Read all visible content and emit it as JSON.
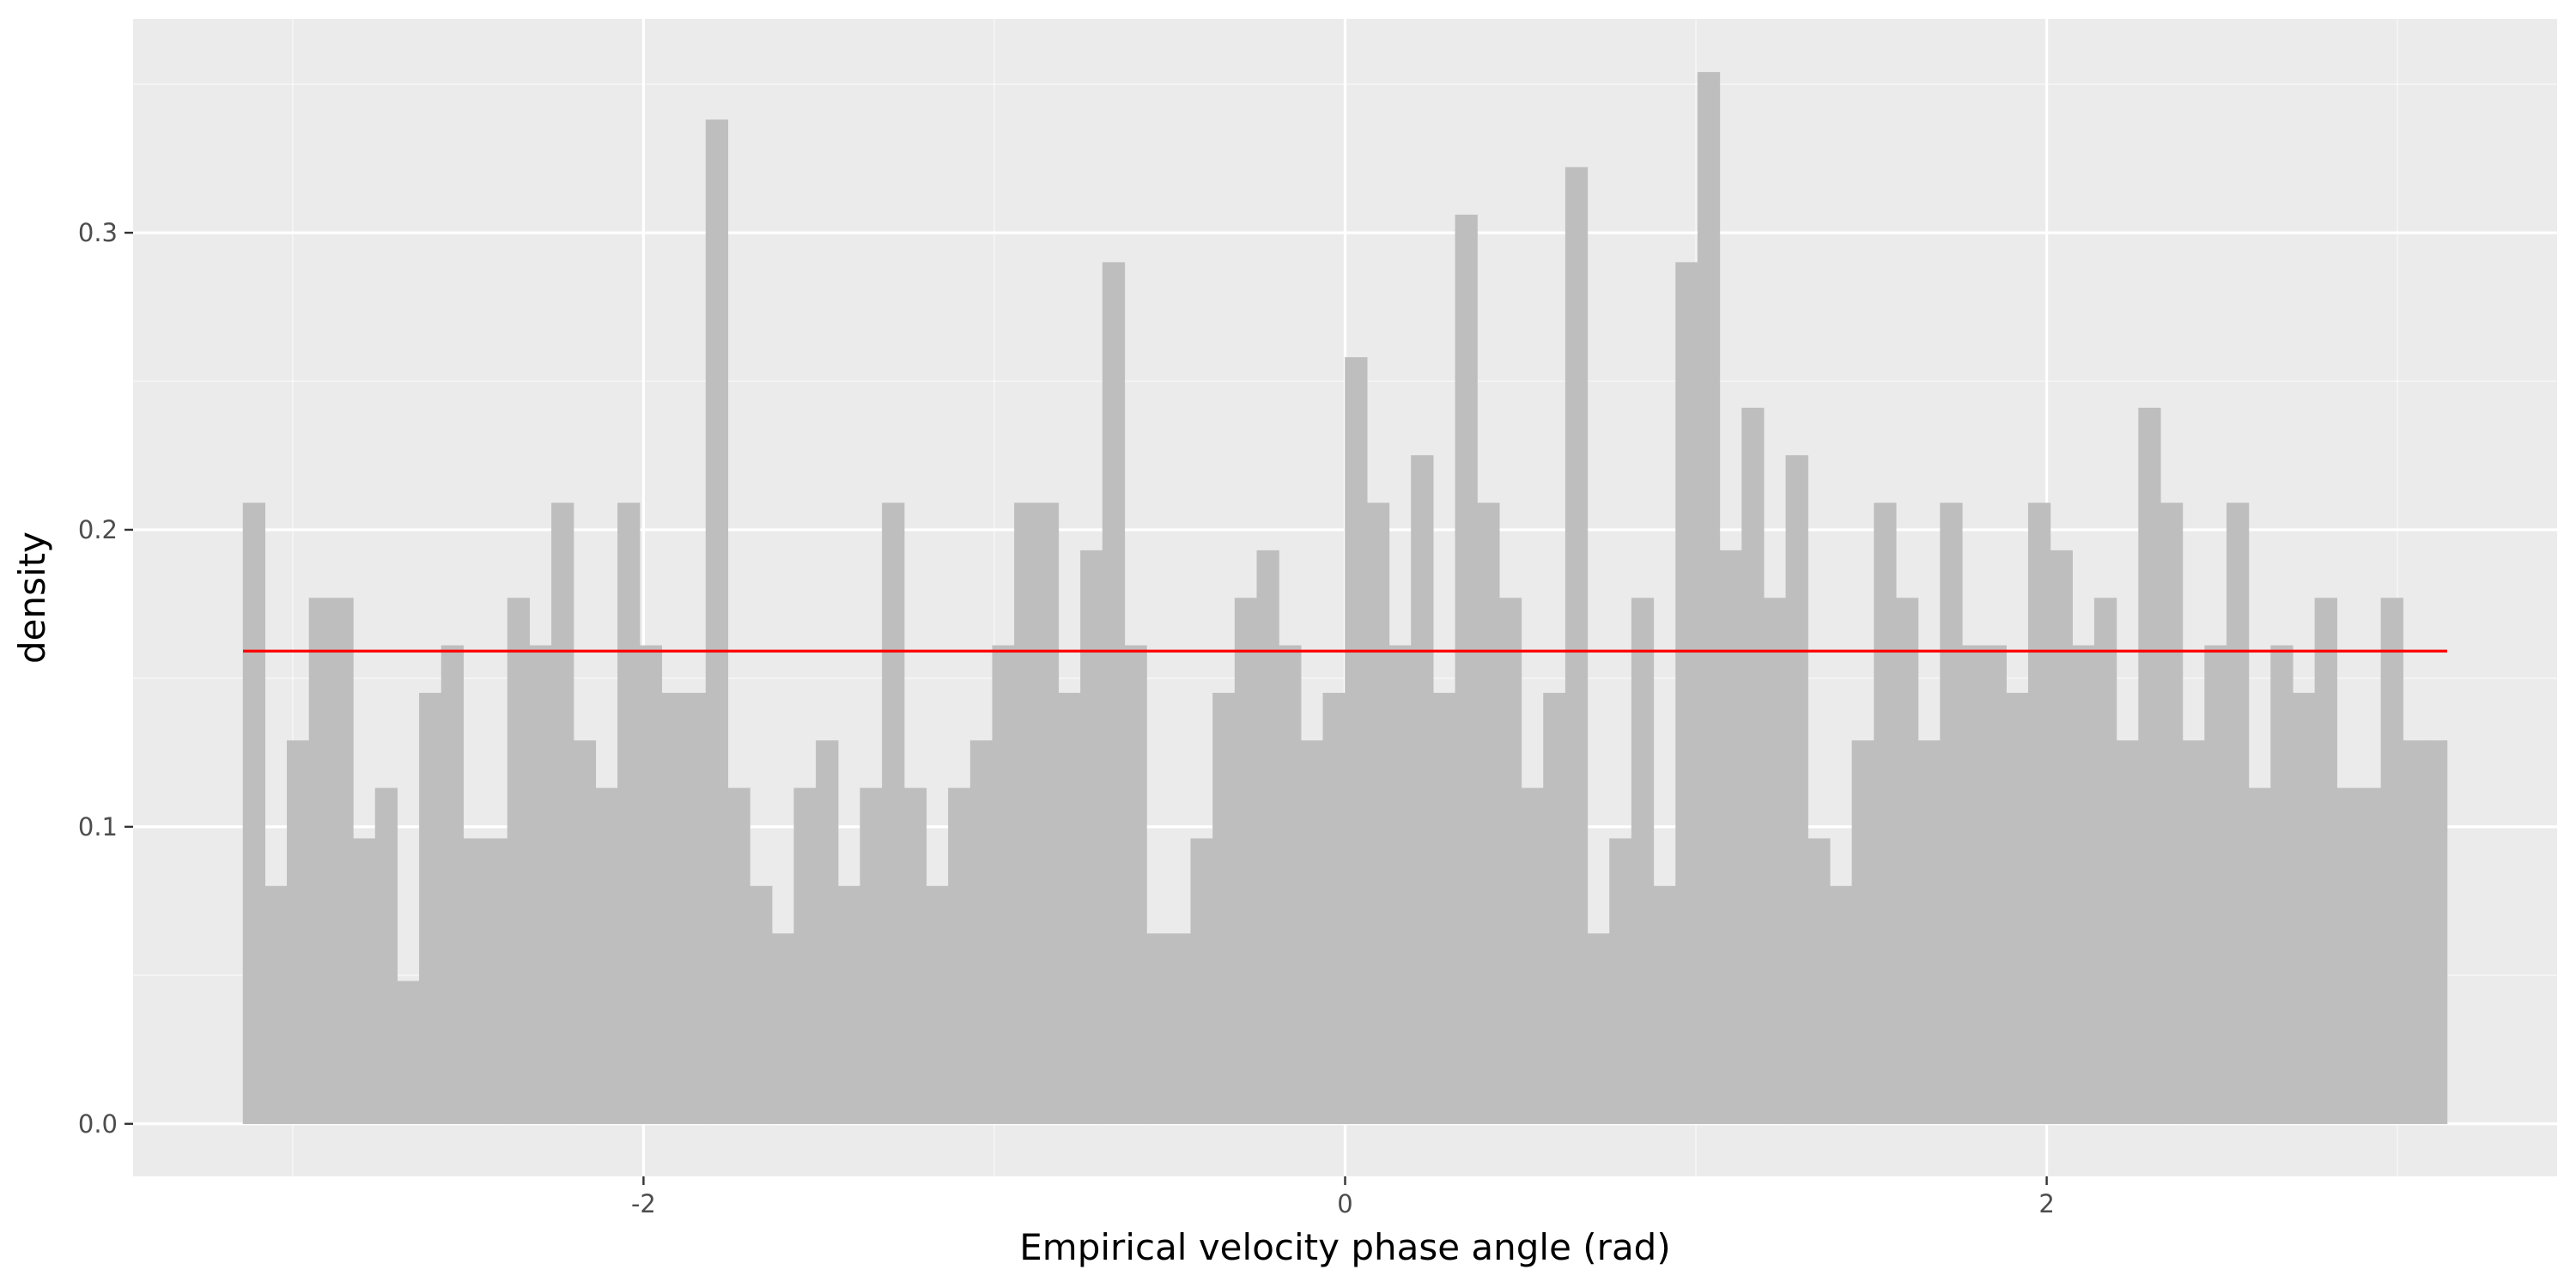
{
  "chart_data": {
    "type": "bar",
    "subtype": "histogram",
    "title": "",
    "xlabel": "Empirical velocity phase angle (rad)",
    "ylabel": "density",
    "xlim": [
      -3.455,
      3.455
    ],
    "ylim": [
      -0.0177,
      0.372
    ],
    "x_breaks": [
      -2,
      0,
      2
    ],
    "x_minor_breaks": [
      -3,
      -1,
      1,
      3
    ],
    "y_breaks": [
      0.0,
      0.1,
      0.2,
      0.3
    ],
    "y_tick_labels": [
      "0.0",
      "0.1",
      "0.2",
      "0.3"
    ],
    "y_minor_breaks": [
      0.05,
      0.15,
      0.25,
      0.35
    ],
    "grid": true,
    "bin_range": [
      -3.1416,
      3.1416
    ],
    "bin_count": 100,
    "values": [
      0.209,
      0.08,
      0.129,
      0.177,
      0.177,
      0.096,
      0.113,
      0.048,
      0.145,
      0.161,
      0.096,
      0.096,
      0.177,
      0.161,
      0.209,
      0.129,
      0.113,
      0.209,
      0.161,
      0.145,
      0.145,
      0.338,
      0.113,
      0.08,
      0.064,
      0.113,
      0.129,
      0.08,
      0.113,
      0.209,
      0.113,
      0.08,
      0.113,
      0.129,
      0.161,
      0.209,
      0.209,
      0.145,
      0.193,
      0.29,
      0.161,
      0.064,
      0.064,
      0.096,
      0.145,
      0.177,
      0.193,
      0.161,
      0.129,
      0.145,
      0.258,
      0.209,
      0.161,
      0.225,
      0.145,
      0.306,
      0.209,
      0.177,
      0.113,
      0.145,
      0.322,
      0.064,
      0.096,
      0.177,
      0.08,
      0.29,
      0.354,
      0.193,
      0.241,
      0.177,
      0.225,
      0.096,
      0.08,
      0.129,
      0.209,
      0.177,
      0.129,
      0.209,
      0.161,
      0.161,
      0.145,
      0.209,
      0.193,
      0.161,
      0.177,
      0.129,
      0.241,
      0.209,
      0.129,
      0.161,
      0.209,
      0.113,
      0.161,
      0.145,
      0.177,
      0.113,
      0.113,
      0.177,
      0.129,
      0.129
    ],
    "reference_line": {
      "y": 0.159155,
      "x_range": [
        -3.1416,
        3.1416
      ],
      "color": "#ff0000"
    },
    "colors": {
      "bar_fill": "#bebebe",
      "panel_background": "#ebebeb",
      "grid_major": "#ffffff",
      "grid_minor": "#f5f5f5",
      "tick_text": "#4d4d4d",
      "tick_mark": "#333333"
    }
  }
}
